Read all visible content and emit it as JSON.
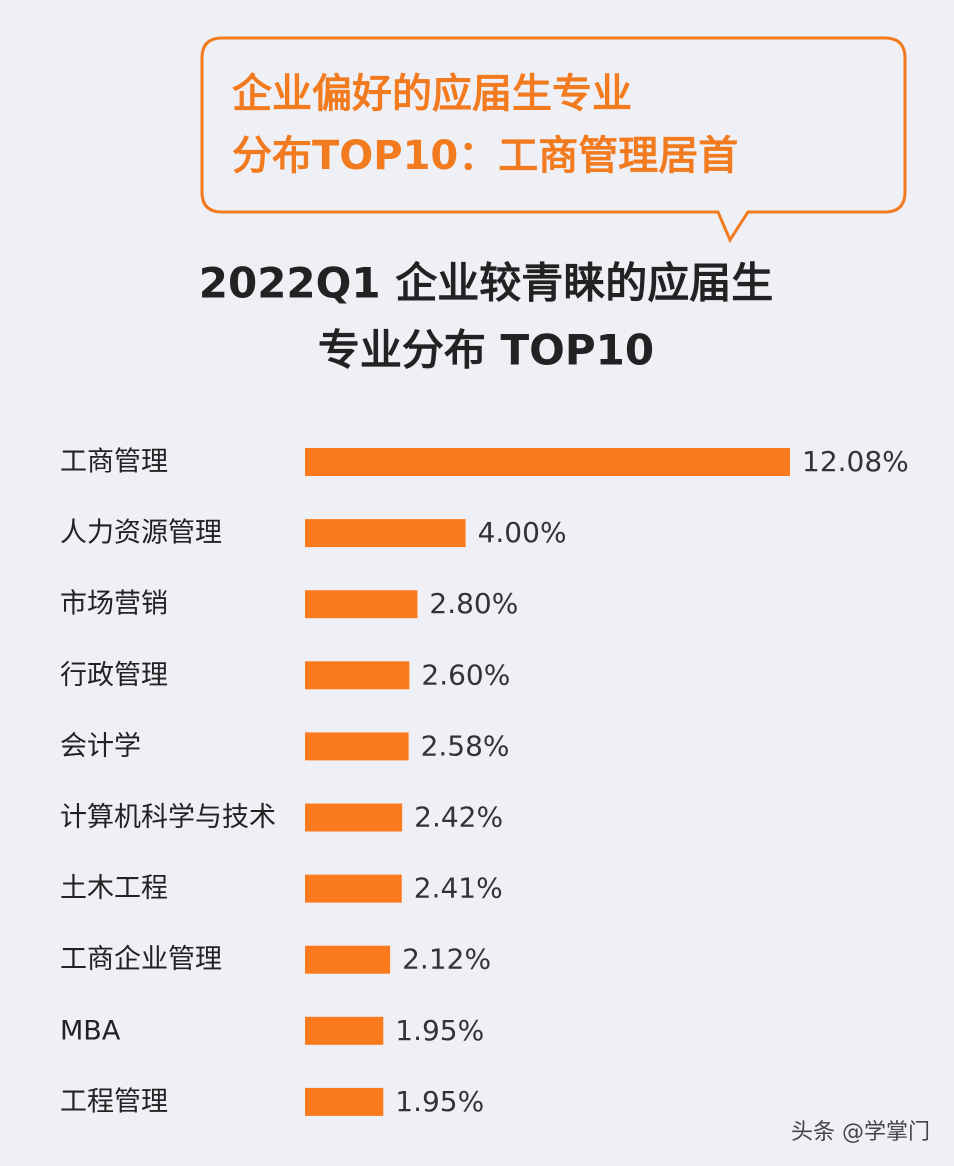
{
  "chart_data": {
    "type": "bar",
    "orientation": "horizontal",
    "callout": [
      "企业偏好的应届生专业",
      "分布TOP10：工商管理居首"
    ],
    "title": [
      "2022Q1 企业较青睐的应届生",
      "专业分布 TOP10"
    ],
    "categories": [
      "工商管理",
      "人力资源管理",
      "市场营销",
      "行政管理",
      "会计学",
      "计算机科学与技术",
      "土木工程",
      "工商企业管理",
      "MBA",
      "工程管理"
    ],
    "values": [
      12.08,
      4.0,
      2.8,
      2.6,
      2.58,
      2.42,
      2.41,
      2.12,
      1.95,
      1.95
    ],
    "value_labels": [
      "12.08%",
      "4.00%",
      "2.80%",
      "2.60%",
      "2.58%",
      "2.42%",
      "2.41%",
      "2.12%",
      "1.95%",
      "1.95%"
    ],
    "color": "#fb7a1e",
    "source": "头条 @学掌门"
  }
}
